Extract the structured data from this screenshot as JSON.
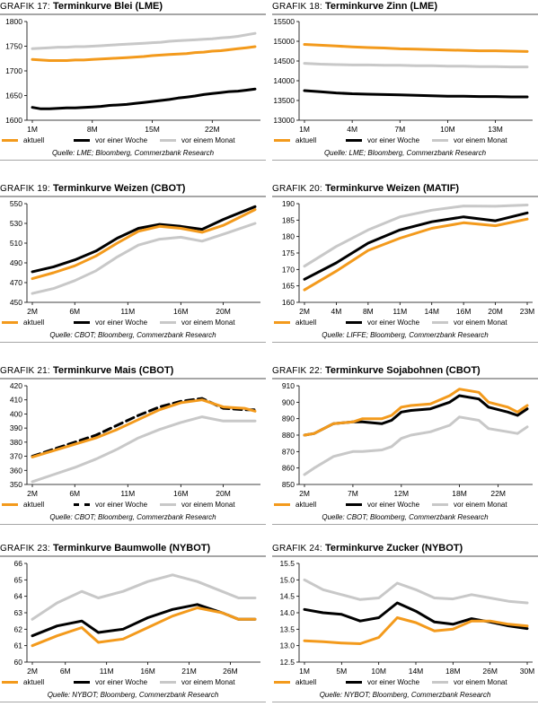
{
  "legend_labels": [
    "aktuell",
    "vor einer Woche",
    "vor einem Monat"
  ],
  "series_colors": [
    "#f39a1c",
    "#000000",
    "#c8c8c8"
  ],
  "panels": [
    {
      "prefix": "GRAFIK 17:",
      "title": "Terminkurve Blei (LME)",
      "source": "Quelle: LME; Bloomberg, Commerzbank Research",
      "chart_data": {
        "type": "line",
        "ylim": [
          1600,
          1800
        ],
        "yticks": [
          1600,
          1650,
          1700,
          1750,
          1800
        ],
        "xlabels": [
          "1M",
          "8M",
          "15M",
          "22M"
        ],
        "xlabel_positions": [
          1,
          8,
          15,
          22
        ],
        "xlim": [
          1,
          27
        ],
        "x": [
          1,
          2,
          3,
          4,
          5,
          6,
          7,
          8,
          9,
          10,
          11,
          12,
          13,
          14,
          15,
          16,
          17,
          18,
          19,
          20,
          21,
          22,
          23,
          24,
          25,
          26,
          27
        ],
        "series": [
          {
            "name": "aktuell",
            "values": [
              1723,
              1722,
              1721,
              1721,
              1721,
              1722,
              1722,
              1723,
              1724,
              1725,
              1726,
              1727,
              1728,
              1729,
              1731,
              1732,
              1733,
              1734,
              1735,
              1737,
              1738,
              1740,
              1741,
              1743,
              1745,
              1747,
              1749
            ],
            "dash": false
          },
          {
            "name": "vor einer Woche",
            "values": [
              1626,
              1623,
              1623,
              1624,
              1625,
              1625,
              1626,
              1627,
              1628,
              1630,
              1631,
              1632,
              1634,
              1636,
              1638,
              1640,
              1642,
              1645,
              1647,
              1649,
              1652,
              1654,
              1656,
              1658,
              1659,
              1661,
              1663
            ],
            "dash": false
          },
          {
            "name": "vor einem Monat",
            "values": [
              1745,
              1746,
              1747,
              1748,
              1748,
              1749,
              1749,
              1750,
              1751,
              1752,
              1753,
              1754,
              1755,
              1756,
              1757,
              1758,
              1760,
              1761,
              1762,
              1763,
              1764,
              1765,
              1767,
              1768,
              1770,
              1773,
              1776
            ],
            "dash": false
          }
        ]
      }
    },
    {
      "prefix": "GRAFIK 18:",
      "title": "Terminkurve Zinn (LME)",
      "source": "Quelle: LME; Bloomberg, Commerzbank Research",
      "chart_data": {
        "type": "line",
        "ylim": [
          13000,
          15500
        ],
        "yticks": [
          13000,
          13500,
          14000,
          14500,
          15000,
          15500
        ],
        "xlabels": [
          "1M",
          "4M",
          "7M",
          "10M",
          "13M"
        ],
        "xlabel_positions": [
          1,
          4,
          7,
          10,
          13
        ],
        "xlim": [
          1,
          15
        ],
        "x": [
          1,
          2,
          3,
          4,
          5,
          6,
          7,
          8,
          9,
          10,
          11,
          12,
          13,
          14,
          15
        ],
        "series": [
          {
            "name": "aktuell",
            "values": [
              14920,
              14900,
              14880,
              14860,
              14840,
              14830,
              14810,
              14800,
              14790,
              14780,
              14770,
              14760,
              14760,
              14750,
              14740
            ],
            "dash": false
          },
          {
            "name": "vor einer Woche",
            "values": [
              13750,
              13720,
              13690,
              13670,
              13660,
              13650,
              13640,
              13630,
              13620,
              13610,
              13610,
              13600,
              13600,
              13590,
              13590
            ],
            "dash": false
          },
          {
            "name": "vor einem Monat",
            "values": [
              14440,
              14420,
              14410,
              14400,
              14400,
              14390,
              14390,
              14380,
              14380,
              14370,
              14370,
              14360,
              14360,
              14350,
              14350
            ],
            "dash": false
          }
        ]
      }
    },
    {
      "prefix": "GRAFIK 19:",
      "title": "Terminkurve Weizen (CBOT)",
      "source": "Quelle: CBOT; Bloomberg, Commerzbank Research",
      "chart_data": {
        "type": "line",
        "ylim": [
          450,
          550
        ],
        "yticks": [
          450,
          470,
          490,
          510,
          530,
          550
        ],
        "xlabels": [
          "2M",
          "6M",
          "11M",
          "16M",
          "20M"
        ],
        "xlabel_positions": [
          2,
          6,
          11,
          16,
          20
        ],
        "xlim": [
          2,
          23
        ],
        "x": [
          2,
          4,
          6,
          8,
          10,
          12,
          14,
          16,
          18,
          20,
          23
        ],
        "series": [
          {
            "name": "aktuell",
            "values": [
              474,
              480,
              487,
              497,
              510,
              522,
              527,
              525,
              521,
              528,
              544
            ],
            "dash": false
          },
          {
            "name": "vor einer Woche",
            "values": [
              481,
              486,
              493,
              502,
              515,
              525,
              529,
              527,
              524,
              534,
              547
            ],
            "dash": false
          },
          {
            "name": "vor einem Monat",
            "values": [
              459,
              464,
              472,
              482,
              496,
              508,
              514,
              516,
              512,
              519,
              530
            ],
            "dash": false
          }
        ]
      }
    },
    {
      "prefix": "GRAFIK 20:",
      "title": "Terminkurve Weizen (MATIF)",
      "source": "Quelle: LIFFE; Bloomberg, Commerzbank Research",
      "chart_data": {
        "type": "line",
        "ylim": [
          160,
          190
        ],
        "yticks": [
          160,
          165,
          170,
          175,
          180,
          185,
          190
        ],
        "xlabels": [
          "2M",
          "4M",
          "8M",
          "11M",
          "14M",
          "16M",
          "20M",
          "23M"
        ],
        "xlabel_positions": [
          1,
          2,
          3,
          4,
          5,
          6,
          7,
          8
        ],
        "xlim": [
          1,
          8
        ],
        "x": [
          1,
          2,
          3,
          4,
          5,
          6,
          7,
          8
        ],
        "series": [
          {
            "name": "aktuell",
            "values": [
              163.8,
              169.5,
              175.8,
              179.5,
              182.5,
              184.2,
              183.3,
              185.3
            ],
            "dash": false
          },
          {
            "name": "vor einer Woche",
            "values": [
              167,
              172,
              178,
              182,
              184.5,
              186,
              184.8,
              187.2
            ],
            "dash": false
          },
          {
            "name": "vor einem Monat",
            "values": [
              171,
              177,
              182,
              186,
              188,
              189.3,
              189.2,
              189.6
            ],
            "dash": false
          }
        ]
      }
    },
    {
      "prefix": "GRAFIK 21:",
      "title": "Terminkurve Mais (CBOT)",
      "source": "Quelle: CBOT; Bloomberg, Commerzbank Research",
      "chart_data": {
        "type": "line",
        "ylim": [
          350,
          420
        ],
        "yticks": [
          350,
          360,
          370,
          380,
          390,
          400,
          410,
          420
        ],
        "xlabels": [
          "2M",
          "6M",
          "11M",
          "16M",
          "20M"
        ],
        "xlabel_positions": [
          2,
          6,
          11,
          16,
          20
        ],
        "xlim": [
          2,
          23
        ],
        "x": [
          2,
          4,
          6,
          8,
          10,
          12,
          14,
          16,
          18,
          20,
          22,
          23
        ],
        "series": [
          {
            "name": "aktuell",
            "values": [
              369.5,
              374,
              378.5,
              383,
              389,
              396,
              403,
              408,
              410,
              405,
              404,
              402
            ],
            "dash": false
          },
          {
            "name": "vor einer Woche",
            "values": [
              370,
              375,
              380,
              385,
              392,
              399,
              405,
              409,
              411,
              404,
              403,
              403
            ],
            "dash": true
          },
          {
            "name": "vor einem Monat",
            "values": [
              352,
              357,
              362,
              368,
              375,
              383,
              389,
              394,
              398,
              395,
              395,
              395
            ],
            "dash": false
          }
        ]
      }
    },
    {
      "prefix": "GRAFIK 22:",
      "title": "Terminkurve Sojabohnen (CBOT)",
      "source": "Quelle: CBOT; Bloomberg, Commerzbank Research",
      "chart_data": {
        "type": "line",
        "ylim": [
          850,
          910
        ],
        "yticks": [
          850,
          860,
          870,
          880,
          890,
          900,
          910
        ],
        "xlabels": [
          "2M",
          "7M",
          "12M",
          "18M",
          "22M"
        ],
        "xlabel_positions": [
          2,
          7,
          12,
          18,
          22
        ],
        "xlim": [
          2,
          25
        ],
        "x": [
          2,
          3,
          5,
          7,
          8,
          10,
          11,
          12,
          13,
          15,
          17,
          18,
          20,
          21,
          23,
          24,
          25
        ],
        "series": [
          {
            "name": "aktuell",
            "values": [
              880,
              881,
              887,
              888,
              890,
              890,
              892,
              897,
              898,
              899,
              904,
              908,
              906,
              900,
              897,
              894,
              898
            ],
            "dash": false
          },
          {
            "name": "vor einer Woche",
            "values": [
              880,
              881,
              887,
              888,
              888,
              887,
              889,
              894,
              895,
              896,
              900,
              904,
              902,
              897,
              894,
              892,
              896
            ],
            "dash": false
          },
          {
            "name": "vor einem Monat",
            "values": [
              856,
              860,
              867,
              870,
              870,
              871,
              873,
              878,
              880,
              882,
              886,
              891,
              889,
              884,
              882,
              881,
              885
            ],
            "dash": false
          }
        ]
      }
    },
    {
      "prefix": "GRAFIK 23:",
      "title": "Terminkurve Baumwolle (NYBOT)",
      "source": "Quelle: NYBOT; Bloomberg, Commerzbank Research",
      "chart_data": {
        "type": "line",
        "ylim": [
          60,
          66
        ],
        "yticks": [
          60,
          61,
          62,
          63,
          64,
          65,
          66
        ],
        "xlabels": [
          "2M",
          "6M",
          "11M",
          "16M",
          "21M",
          "26M"
        ],
        "xlabel_positions": [
          2,
          6,
          11,
          16,
          21,
          26
        ],
        "xlim": [
          2,
          29
        ],
        "x": [
          2,
          5,
          8,
          10,
          13,
          16,
          19,
          22,
          25,
          27,
          29
        ],
        "series": [
          {
            "name": "aktuell",
            "values": [
              61.0,
              61.6,
              62.1,
              61.2,
              61.4,
              62.1,
              62.8,
              63.3,
              63.0,
              62.6,
              62.6
            ],
            "dash": false
          },
          {
            "name": "vor einer Woche",
            "values": [
              61.6,
              62.2,
              62.5,
              61.8,
              62.0,
              62.7,
              63.2,
              63.5,
              63.0,
              62.6,
              62.6
            ],
            "dash": false
          },
          {
            "name": "vor einem Monat",
            "values": [
              62.6,
              63.6,
              64.3,
              63.9,
              64.3,
              64.9,
              65.3,
              64.9,
              64.3,
              63.9,
              63.9
            ],
            "dash": false
          }
        ]
      }
    },
    {
      "prefix": "GRAFIK 24:",
      "title": "Terminkurve Zucker (NYBOT)",
      "source": "Quelle: NYBOT; Bloomberg, Commerzbank Research",
      "chart_data": {
        "type": "line",
        "ylim": [
          12.5,
          15.5
        ],
        "yticks": [
          12.5,
          13.0,
          13.5,
          14.0,
          14.5,
          15.0,
          15.5
        ],
        "xlabels": [
          "1M",
          "5M",
          "10M",
          "14M",
          "18M",
          "26M",
          "30M"
        ],
        "xlabel_positions": [
          1,
          2,
          3,
          4,
          5,
          6,
          7
        ],
        "xlim": [
          1,
          7
        ],
        "x": [
          1,
          1.5,
          2,
          2.5,
          3,
          3.5,
          4,
          4.5,
          5,
          5.5,
          6,
          6.5,
          7
        ],
        "series": [
          {
            "name": "aktuell",
            "values": [
              13.15,
              13.12,
              13.08,
              13.06,
              13.25,
              13.85,
              13.7,
              13.45,
              13.5,
              13.75,
              13.75,
              13.65,
              13.6
            ],
            "dash": false
          },
          {
            "name": "vor einer Woche",
            "values": [
              14.1,
              14.0,
              13.95,
              13.75,
              13.85,
              14.3,
              14.05,
              13.72,
              13.65,
              13.82,
              13.72,
              13.6,
              13.52
            ],
            "dash": false
          },
          {
            "name": "vor einem Monat",
            "values": [
              15.0,
              14.7,
              14.55,
              14.4,
              14.45,
              14.9,
              14.7,
              14.45,
              14.42,
              14.55,
              14.45,
              14.35,
              14.3
            ],
            "dash": false
          }
        ]
      }
    }
  ]
}
